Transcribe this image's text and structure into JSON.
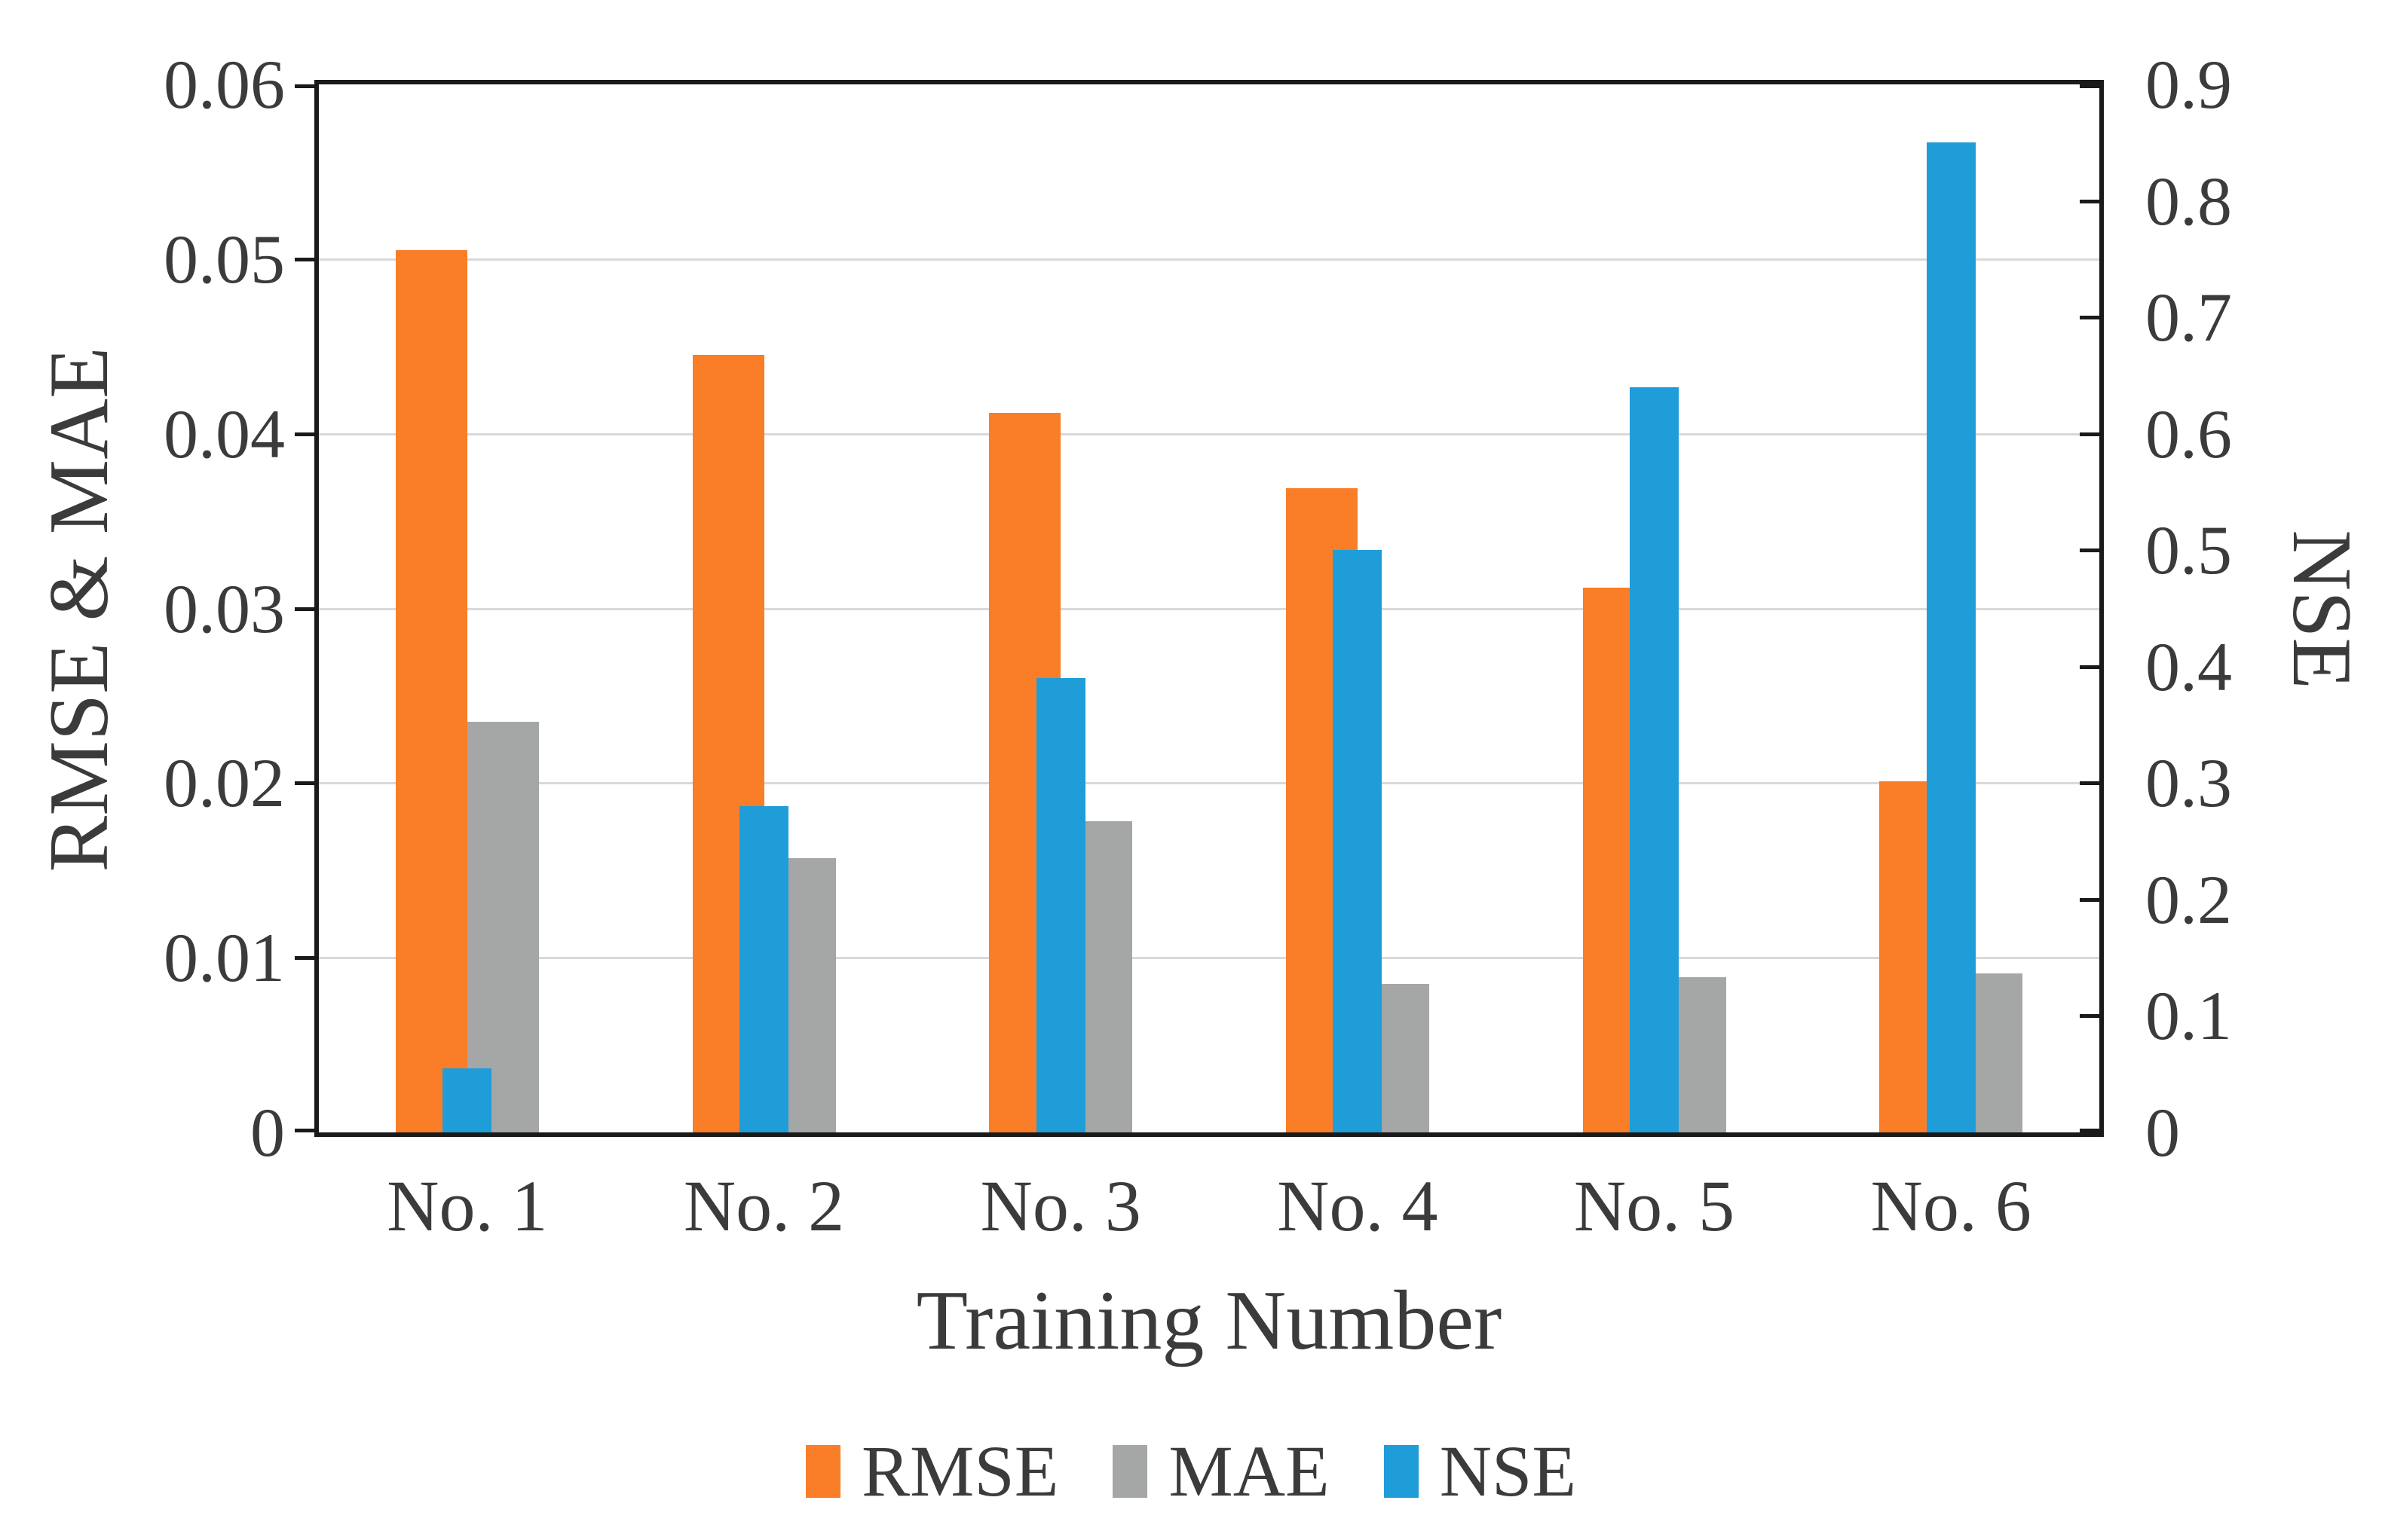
{
  "chart_data": {
    "type": "bar",
    "title": "",
    "categories": [
      "No. 1",
      "No. 2",
      "No. 3",
      "No. 4",
      "No. 5",
      "No. 6"
    ],
    "series": [
      {
        "name": "RMSE",
        "axis": "left",
        "color": "#FA7D28",
        "values": [
          0.0505,
          0.0445,
          0.0412,
          0.0369,
          0.0312,
          0.0201
        ]
      },
      {
        "name": "MAE",
        "axis": "left",
        "color": "#A5A6A6",
        "values": [
          0.0235,
          0.0157,
          0.0178,
          0.0085,
          0.0089,
          0.0091
        ]
      },
      {
        "name": "NSE",
        "axis": "right",
        "color": "#1F9DD9",
        "values": [
          0.055,
          0.28,
          0.39,
          0.5,
          0.64,
          0.85
        ]
      }
    ],
    "left_axis": {
      "label": "RMSE & MAE",
      "min": 0,
      "max": 0.06,
      "ticks": [
        "0",
        "0.01",
        "0.02",
        "0.03",
        "0.04",
        "0.05",
        "0.06"
      ]
    },
    "right_axis": {
      "label": "NSE",
      "min": 0,
      "max": 0.9,
      "ticks": [
        "0",
        "0.1",
        "0.2",
        "0.3",
        "0.4",
        "0.5",
        "0.6",
        "0.7",
        "0.8",
        "0.9"
      ]
    },
    "x_axis": {
      "label": "Training Number"
    },
    "legend": {
      "position": "bottom",
      "entries": [
        "RMSE",
        "MAE",
        "NSE"
      ]
    },
    "grid": true,
    "colors": {
      "gridline": "#D9D9D9",
      "axis": "#1A1A1A",
      "text": "#3B3B3B",
      "background": "#FFFFFF"
    }
  }
}
